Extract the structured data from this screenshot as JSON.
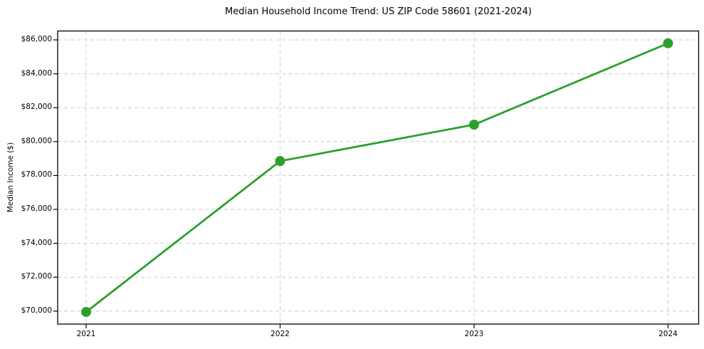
{
  "chart_data": {
    "type": "line",
    "title": "Median Household Income Trend: US ZIP Code 58601 (2021-2024)",
    "xlabel": "",
    "ylabel": "Median Income ($)",
    "x": [
      2021,
      2022,
      2023,
      2024
    ],
    "x_labels": [
      "2021",
      "2022",
      "2023",
      "2024"
    ],
    "series": [
      {
        "name": "Median Household Income",
        "values": [
          69950,
          78850,
          81000,
          85800
        ]
      }
    ],
    "ylim": [
      69235,
      86525
    ],
    "yticks": [
      {
        "value": 70000,
        "label": "$70,000"
      },
      {
        "value": 72000,
        "label": "$72,000"
      },
      {
        "value": 74000,
        "label": "$74,000"
      },
      {
        "value": 76000,
        "label": "$76,000"
      },
      {
        "value": 78000,
        "label": "$78,000"
      },
      {
        "value": 80000,
        "label": "$80,000"
      },
      {
        "value": 82000,
        "label": "$82,000"
      },
      {
        "value": 84000,
        "label": "$84,000"
      },
      {
        "value": 86000,
        "label": "$86,000"
      }
    ],
    "grid": "dashed-both",
    "legend": "none",
    "marker": "circle",
    "colors": {
      "line": "#2ca02c",
      "marker": "#2ca02c",
      "grid": "#cccccc",
      "axis": "#000000",
      "text": "#000000",
      "background": "#ffffff"
    }
  }
}
